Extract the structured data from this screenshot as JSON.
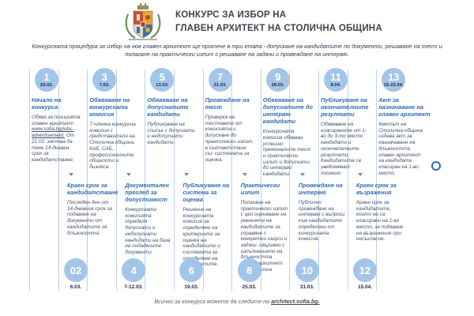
{
  "header": {
    "title_line1": "КОНКУРС ЗА ИЗБОР НА",
    "title_line2": "ГЛАВЕН АРХИТЕКТ НА СТОЛИЧНА ОБЩИНА",
    "subtitle": "Конкурсната процедура за избор на нов главен архитект ще протече в три етапа - допускане на кандидатите по документи, решаване на тест и полагане на практически изпит с решаване на задачи и провеждане на интервю.",
    "logo": "sofia-coat-of-arms"
  },
  "timeline": {
    "top_items": [
      {
        "num": "1",
        "date": "20.02.",
        "title": "Начало на конкурса",
        "desc_pre": "Обява за позицията главен архитект",
        "link": "www.sofia.bg/jobs-advertisement.",
        "desc_post": "От 21.02. започва да тече 14-дневен срок за кандидатстване."
      },
      {
        "num": "3",
        "date": "7.03.",
        "title": "Обявяване на конкурсната комисия",
        "desc": "7-членна конкурсна комисия с представители на Столична община, КАБ, САБ, професионалните общности и бизнеса."
      },
      {
        "num": "5",
        "date": "13.03.",
        "title": "Обявяване на допуснатите кандидати",
        "desc": "Публикуване на списък с допуснати и недопуснати кандидати."
      },
      {
        "num": "7",
        "date": "21.03.",
        "title": "Провеждане на тест",
        "desc": "Проверка на тестовете от комисията и допускане до практически изпит в съответствие със системата за оценка."
      },
      {
        "num": "9",
        "date": "28.03.",
        "title": "Обявяване на допуснатите до интервю кандидати",
        "desc": "Конкурсната комисия обявява успешно преминалите тест и практически изпит и допуснати до интервю кандидати."
      },
      {
        "num": "11",
        "date": "8.04.",
        "title": "Публикуване на окончателните резултати",
        "desc": "Обявяване на класираните от 1-во до 3-то място кандидати и окончателните резултати. Кандидатите се уведомяват писмено."
      },
      {
        "num": "13",
        "date": "16-22.04.",
        "title": "Акт за назначаване на главен архитект",
        "desc": "Кметът на Столична община издава акт за назначаване на длъжността главен архитект на кандидата класиран на 1-во място."
      }
    ],
    "bottom_items": [
      {
        "num": "02",
        "date": "6.03.",
        "title": "Краен срок за кандидатстване",
        "desc": "Последен ден от 14-дневния срок за подаване на документи от кандидатите за длъжността."
      },
      {
        "num": "4",
        "date": "7-12.03.",
        "title": "Документален преглед за допустимост",
        "desc": "Конкурсната комисията определя допуснати и недопуснати кандидати на база на подадените документи."
      },
      {
        "num": "6",
        "date": "19.03.",
        "title": "Публикуване на система за оценка",
        "desc": "Решение на конкурсната комисия за определяне на критериите за оценка на кандидатите и системата за определяне на резултатите."
      },
      {
        "num": "8",
        "date": "25.03.",
        "title": "Практически изпит",
        "desc": "Полагане на практически изпит с цел оценяване на уменията на кандидатите за справяне с конкретни казуси и задачи, свързани с изпълнението на длъжността главен архитект на Столична община."
      },
      {
        "num": "10",
        "date": "31.03.",
        "title": "Провеждане на интервю",
        "desc": "Публично провеждане на интервю с въпроси към кандидатите определени от конкурсната комисия."
      },
      {
        "num": "12",
        "date": "15.04.",
        "title": "Краен срок за възражения",
        "desc": "Краен срок за кандидатите, които не са класирани на 1-во място, за подаване на възражение при несъгласие."
      }
    ]
  },
  "footer": {
    "text": "Всичко за конкурса можете да следите на",
    "link": "architect.sofia.bg."
  },
  "colors": {
    "accent_blue": "#2e6cb5",
    "circle_fill": "#a3c5e9",
    "line_blue": "#bad3ee",
    "text_dark": "#44516b",
    "date_dark": "#1d2840"
  }
}
